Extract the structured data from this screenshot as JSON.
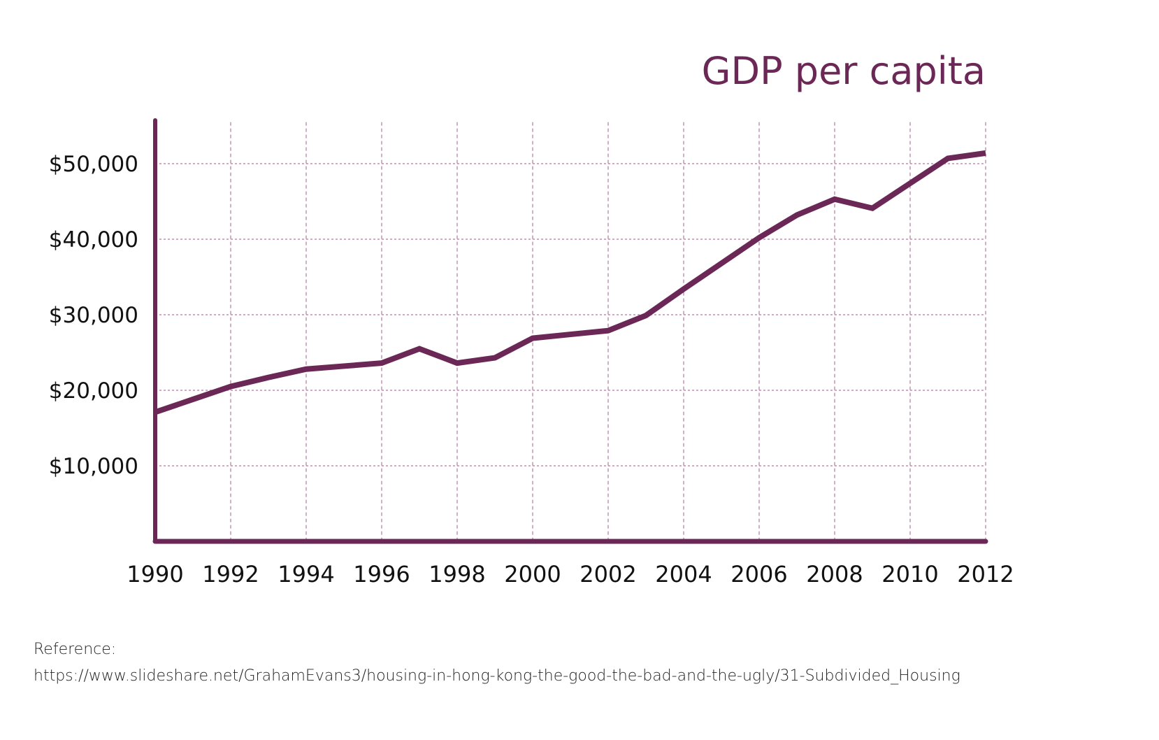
{
  "chart_data": {
    "type": "line",
    "title": "GDP per capita",
    "xlabel": "",
    "ylabel": "",
    "x": [
      1990,
      1991,
      1992,
      1993,
      1994,
      1995,
      1996,
      1997,
      1998,
      1999,
      2000,
      2001,
      2002,
      2003,
      2004,
      2005,
      2006,
      2007,
      2008,
      2009,
      2010,
      2011,
      2012
    ],
    "series": [
      {
        "name": "GDP per capita",
        "values": [
          17100,
          18800,
          20500,
          21700,
          22800,
          23200,
          23600,
          25500,
          23600,
          24300,
          26900,
          27400,
          27900,
          29900,
          33400,
          36800,
          40200,
          43200,
          45300,
          44100,
          47400,
          50700,
          51400
        ]
      }
    ],
    "xticks": [
      1990,
      1992,
      1994,
      1996,
      1998,
      2000,
      2002,
      2004,
      2006,
      2008,
      2010,
      2012
    ],
    "xtick_labels": [
      "1990",
      "1992",
      "1994",
      "1996",
      "1998",
      "2000",
      "2002",
      "2004",
      "2006",
      "2008",
      "2010",
      "2012"
    ],
    "yticks": [
      10000,
      20000,
      30000,
      40000,
      50000
    ],
    "ytick_labels": [
      "$10,000",
      "$20,000",
      "$30,000",
      "$40,000",
      "$50,000"
    ],
    "xlim": [
      1990,
      2012
    ],
    "ylim": [
      0,
      55500
    ],
    "grid": true,
    "color": "#6b2857",
    "grid_color": "#b07a9c"
  },
  "reference": {
    "label": "Reference:",
    "url": "https://www.slideshare.net/GrahamEvans3/housing-in-hong-kong-the-good-the-bad-and-the-ugly/31-Subdivided_Housing"
  }
}
